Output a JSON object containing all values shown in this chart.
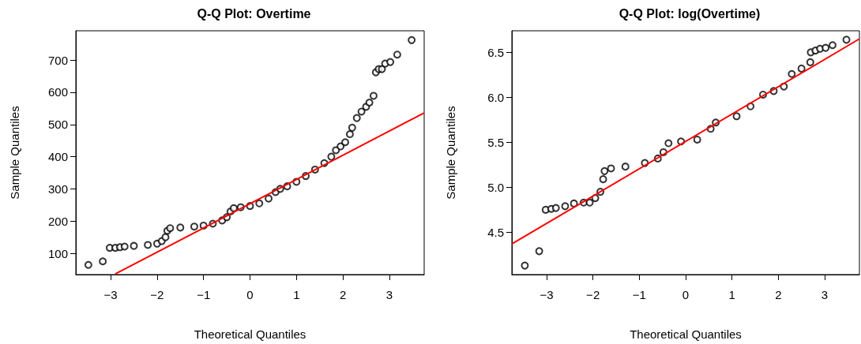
{
  "chart_data": [
    {
      "type": "scatter",
      "title": "Q-Q Plot: Overtime",
      "xlabel": "Theoretical Quantiles",
      "ylabel": "Sample Quantiles",
      "grid": false,
      "xlim": [
        -3.75,
        3.75
      ],
      "ylim": [
        34,
        791
      ],
      "xticks": [
        -3,
        -2,
        -1,
        0,
        1,
        2,
        3
      ],
      "yticks": [
        100,
        200,
        300,
        400,
        500,
        600,
        700
      ],
      "series": [
        {
          "marker": "circle",
          "color": "#000000",
          "x": [
            -3.48,
            -3.17,
            -3.02,
            -2.9,
            -2.8,
            -2.7,
            -2.5,
            -2.2,
            -2.0,
            -1.9,
            -1.82,
            -1.78,
            -1.72,
            -1.5,
            -1.2,
            -1.0,
            -0.8,
            -0.6,
            -0.5,
            -0.42,
            -0.35,
            -0.2,
            0,
            0.2,
            0.4,
            0.55,
            0.65,
            0.8,
            1.0,
            1.2,
            1.4,
            1.6,
            1.75,
            1.85,
            1.95,
            2.05,
            2.15,
            2.2,
            2.3,
            2.4,
            2.5,
            2.57,
            2.66,
            2.71,
            2.77,
            2.84,
            2.91,
            3.02,
            3.17,
            3.48
          ],
          "values": [
            64,
            75,
            117,
            117,
            119,
            121,
            123,
            126,
            130,
            138,
            150,
            170,
            178,
            180,
            183,
            186,
            192,
            202,
            212,
            230,
            240,
            243,
            247,
            255,
            270,
            290,
            300,
            308,
            322,
            340,
            360,
            380,
            400,
            420,
            432,
            445,
            470,
            490,
            520,
            540,
            555,
            568,
            589,
            662,
            672,
            672,
            689,
            694,
            717,
            762
          ]
        },
        {
          "type": "line",
          "marker": "none",
          "color": "#ff0000",
          "x": [
            -2.9,
            3.75
          ],
          "values": [
            36,
            536
          ]
        }
      ]
    },
    {
      "type": "scatter",
      "title": "Q-Q Plot: log(Overtime)",
      "xlabel": "Theoretical Quantiles",
      "ylabel": "Sample Quantiles",
      "grid": false,
      "xlim": [
        -3.75,
        3.75
      ],
      "ylim": [
        4.03,
        6.74
      ],
      "xticks": [
        -3,
        -2,
        -1,
        0,
        1,
        2,
        3
      ],
      "yticks": [
        4.5,
        {
          "value": 5,
          "label": "5.0"
        },
        5.5,
        {
          "value": 6,
          "label": "6.0"
        },
        6.5
      ],
      "series": [
        {
          "marker": "circle",
          "color": "#000000",
          "x": [
            -3.47,
            -3.16,
            -3.02,
            -2.9,
            -2.8,
            -2.6,
            -2.41,
            -2.2,
            -2.07,
            -1.95,
            -1.84,
            -1.78,
            -1.75,
            -1.61,
            -1.3,
            -0.88,
            -0.6,
            -0.48,
            -0.37,
            -0.1,
            0.25,
            0.54,
            0.65,
            1.1,
            1.4,
            1.67,
            1.9,
            2.12,
            2.29,
            2.5,
            2.69,
            2.7,
            2.8,
            2.9,
            3.02,
            3.17,
            3.47
          ],
          "values": [
            4.13,
            4.29,
            4.75,
            4.76,
            4.77,
            4.79,
            4.82,
            4.83,
            4.83,
            4.88,
            4.95,
            5.09,
            5.18,
            5.21,
            5.23,
            5.27,
            5.32,
            5.39,
            5.49,
            5.51,
            5.53,
            5.65,
            5.72,
            5.79,
            5.9,
            6.03,
            6.07,
            6.12,
            6.26,
            6.32,
            6.39,
            6.5,
            6.52,
            6.54,
            6.55,
            6.58,
            6.64
          ]
        },
        {
          "type": "line",
          "marker": "none",
          "color": "#ff0000",
          "x": [
            -3.75,
            3.75
          ],
          "values": [
            4.37,
            6.65
          ]
        }
      ]
    }
  ]
}
